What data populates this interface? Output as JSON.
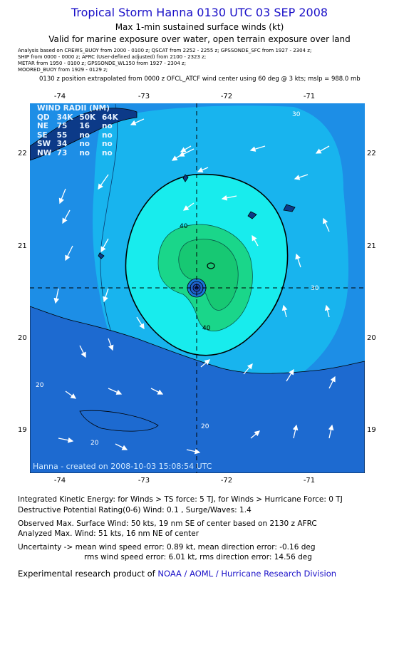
{
  "header": {
    "title": "Tropical Storm Hanna 0130 UTC 03 SEP 2008",
    "subtitle": "Max 1-min sustained surface winds (kt)",
    "valid": "Valid for marine exposure over water, open terrain exposure over land",
    "analysis_lines": [
      "Analysis based on  CREWS_BUOY from 2000 - 0100 z;  QSCAT from 2252 - 2255 z;  GPSSONDE_SFC from 1927 - 2304 z;",
      "SHIP from 0000 - 0000 z;  AFRC (User-defined adjusted) from 2100 - 2323 z;",
      "METAR from 1950 - 0100 z;  GPSSONDE_WL150 from 1927 - 2304 z;",
      "MOORED_BUOY from 1929 - 0129 z;"
    ],
    "position_note": "0130 z position extrapolated from 0000 z OFCL_ATCF wind center using 60 deg @ 3 kts; mslp = 988.0 mb"
  },
  "map": {
    "lon_ticks": [
      "-74",
      "-73",
      "-72",
      "-71"
    ],
    "lat_ticks": [
      "22",
      "21",
      "20",
      "19"
    ],
    "contour_labels": [
      "30",
      "40",
      "40",
      "20",
      "20",
      "20",
      "30"
    ],
    "credit": "Hanna - created on 2008-10-03 15:08:54 UTC",
    "colors": {
      "band_low": "#1f6fd6",
      "band_mid": "#1d8ee6",
      "band_30": "#18b4ee",
      "band_40": "#18eced",
      "band_50": "#1ad68a",
      "land": "#0c3a88"
    }
  },
  "wind_radii": {
    "header": [
      "WIND RADII (NM)"
    ],
    "columns": [
      "QD",
      "34K",
      "50K",
      "64K"
    ],
    "rows": [
      [
        "NE",
        "75",
        "16",
        "no"
      ],
      [
        "SE",
        "55",
        "no",
        "no"
      ],
      [
        "SW",
        "34",
        "no",
        "no"
      ],
      [
        "NW",
        "73",
        "no",
        "no"
      ]
    ]
  },
  "footer": {
    "ike": "Integrated Kinetic Energy:  for Winds > TS force: 5 TJ,  for Winds > Hurricane Force: 0 TJ",
    "dpr": "Destructive Potential Rating(0-6)   Wind: 0.1 , Surge/Waves: 1.4",
    "observed": "Observed Max. Surface Wind: 50 kts, 19 nm SE of center based on 2130 z AFRC",
    "analyzed": "Analyzed Max. Wind: 51 kts, 16 nm NE of center",
    "uncertainty1": "Uncertainty -> mean wind speed error: 0.89 kt,   mean direction error:  -0.16 deg",
    "uncertainty2": "rms wind speed error: 6.01 kt,   rms direction error: 14.56 deg",
    "product_prefix": "Experimental research product of",
    "product_org": "NOAA / AOML / Hurricane Research Division"
  }
}
